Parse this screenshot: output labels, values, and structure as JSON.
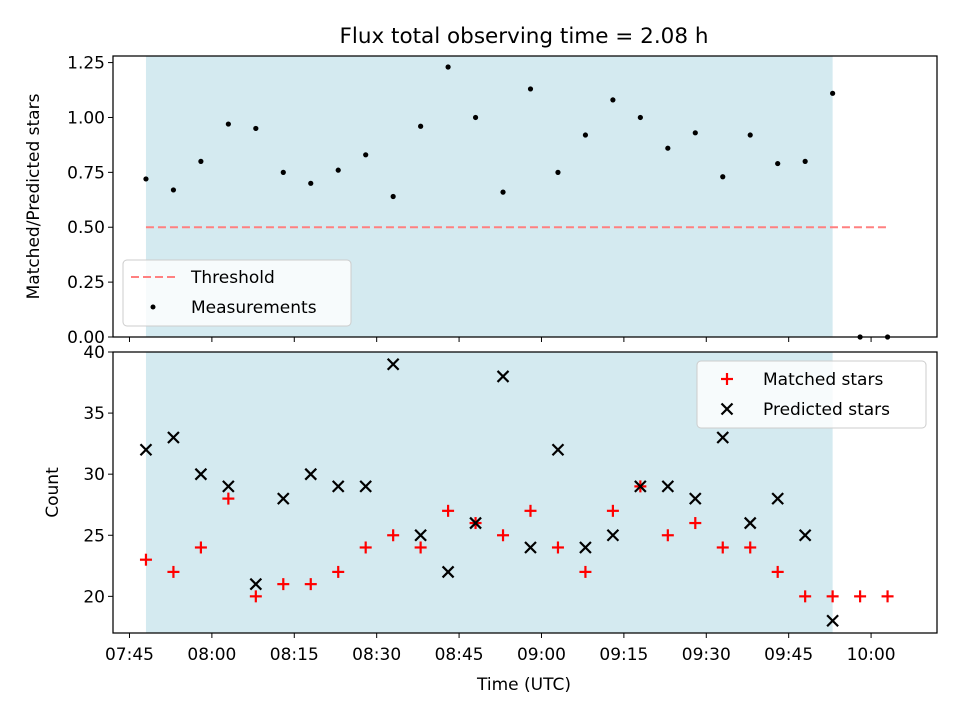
{
  "chart_data": [
    {
      "type": "scatter",
      "title": "Flux total observing time = 2.08 h",
      "ylabel": "Matched/Predicted stars",
      "ylim": [
        0,
        1.28
      ],
      "yticks": [
        "0.00",
        "0.25",
        "0.50",
        "0.75",
        "1.00",
        "1.25"
      ],
      "shaded_interval": {
        "start": "07:48",
        "end": "09:53",
        "color": "#d4eaf0"
      },
      "threshold": {
        "name": "Threshold",
        "value": 0.5,
        "x_start": "07:48",
        "x_end": "10:03",
        "color": "#ff8080"
      },
      "legend_position": "lower-left",
      "series": [
        {
          "name": "Measurements",
          "color": "#000000",
          "points": [
            [
              "07:48",
              0.72
            ],
            [
              "07:53",
              0.67
            ],
            [
              "07:58",
              0.8
            ],
            [
              "08:03",
              0.97
            ],
            [
              "08:08",
              0.95
            ],
            [
              "08:13",
              0.75
            ],
            [
              "08:18",
              0.7
            ],
            [
              "08:23",
              0.76
            ],
            [
              "08:28",
              0.83
            ],
            [
              "08:33",
              0.64
            ],
            [
              "08:38",
              0.96
            ],
            [
              "08:43",
              1.23
            ],
            [
              "08:48",
              1.0
            ],
            [
              "08:53",
              0.66
            ],
            [
              "08:58",
              1.13
            ],
            [
              "09:03",
              0.75
            ],
            [
              "09:08",
              0.92
            ],
            [
              "09:13",
              1.08
            ],
            [
              "09:18",
              1.0
            ],
            [
              "09:23",
              0.86
            ],
            [
              "09:28",
              0.93
            ],
            [
              "09:33",
              0.73
            ],
            [
              "09:38",
              0.92
            ],
            [
              "09:43",
              0.79
            ],
            [
              "09:48",
              0.8
            ],
            [
              "09:53",
              1.11
            ],
            [
              "09:58",
              0.0
            ],
            [
              "10:03",
              0.0
            ]
          ]
        }
      ]
    },
    {
      "type": "scatter",
      "xlabel": "Time (UTC)",
      "ylabel": "Count",
      "ylim": [
        17,
        40
      ],
      "yticks": [
        "20",
        "25",
        "30",
        "35",
        "40"
      ],
      "xticks": [
        "07:45",
        "08:00",
        "08:15",
        "08:30",
        "08:45",
        "09:00",
        "09:15",
        "09:30",
        "09:45",
        "10:00"
      ],
      "xlim": [
        "07:42",
        "10:12"
      ],
      "shaded_interval": {
        "start": "07:48",
        "end": "09:53",
        "color": "#d4eaf0"
      },
      "legend_position": "top-right",
      "series": [
        {
          "name": "Matched stars",
          "marker": "+",
          "color": "#ff0000",
          "points": [
            [
              "07:48",
              23
            ],
            [
              "07:53",
              22
            ],
            [
              "07:58",
              24
            ],
            [
              "08:03",
              28
            ],
            [
              "08:08",
              20
            ],
            [
              "08:13",
              21
            ],
            [
              "08:18",
              21
            ],
            [
              "08:23",
              22
            ],
            [
              "08:28",
              24
            ],
            [
              "08:33",
              25
            ],
            [
              "08:38",
              24
            ],
            [
              "08:43",
              27
            ],
            [
              "08:48",
              26
            ],
            [
              "08:53",
              25
            ],
            [
              "08:58",
              27
            ],
            [
              "09:03",
              24
            ],
            [
              "09:08",
              22
            ],
            [
              "09:13",
              27
            ],
            [
              "09:18",
              29
            ],
            [
              "09:23",
              25
            ],
            [
              "09:28",
              26
            ],
            [
              "09:33",
              24
            ],
            [
              "09:38",
              24
            ],
            [
              "09:43",
              22
            ],
            [
              "09:48",
              20
            ],
            [
              "09:53",
              20
            ],
            [
              "09:58",
              20
            ],
            [
              "10:03",
              20
            ]
          ]
        },
        {
          "name": "Predicted stars",
          "marker": "x",
          "color": "#000000",
          "points": [
            [
              "07:48",
              32
            ],
            [
              "07:53",
              33
            ],
            [
              "07:58",
              30
            ],
            [
              "08:03",
              29
            ],
            [
              "08:08",
              21
            ],
            [
              "08:13",
              28
            ],
            [
              "08:18",
              30
            ],
            [
              "08:23",
              29
            ],
            [
              "08:28",
              29
            ],
            [
              "08:33",
              39
            ],
            [
              "08:38",
              25
            ],
            [
              "08:43",
              22
            ],
            [
              "08:48",
              26
            ],
            [
              "08:53",
              38
            ],
            [
              "08:58",
              24
            ],
            [
              "09:03",
              32
            ],
            [
              "09:08",
              24
            ],
            [
              "09:13",
              25
            ],
            [
              "09:18",
              29
            ],
            [
              "09:23",
              29
            ],
            [
              "09:28",
              28
            ],
            [
              "09:33",
              33
            ],
            [
              "09:38",
              26
            ],
            [
              "09:43",
              28
            ],
            [
              "09:48",
              25
            ],
            [
              "09:53",
              18
            ]
          ]
        }
      ]
    }
  ]
}
